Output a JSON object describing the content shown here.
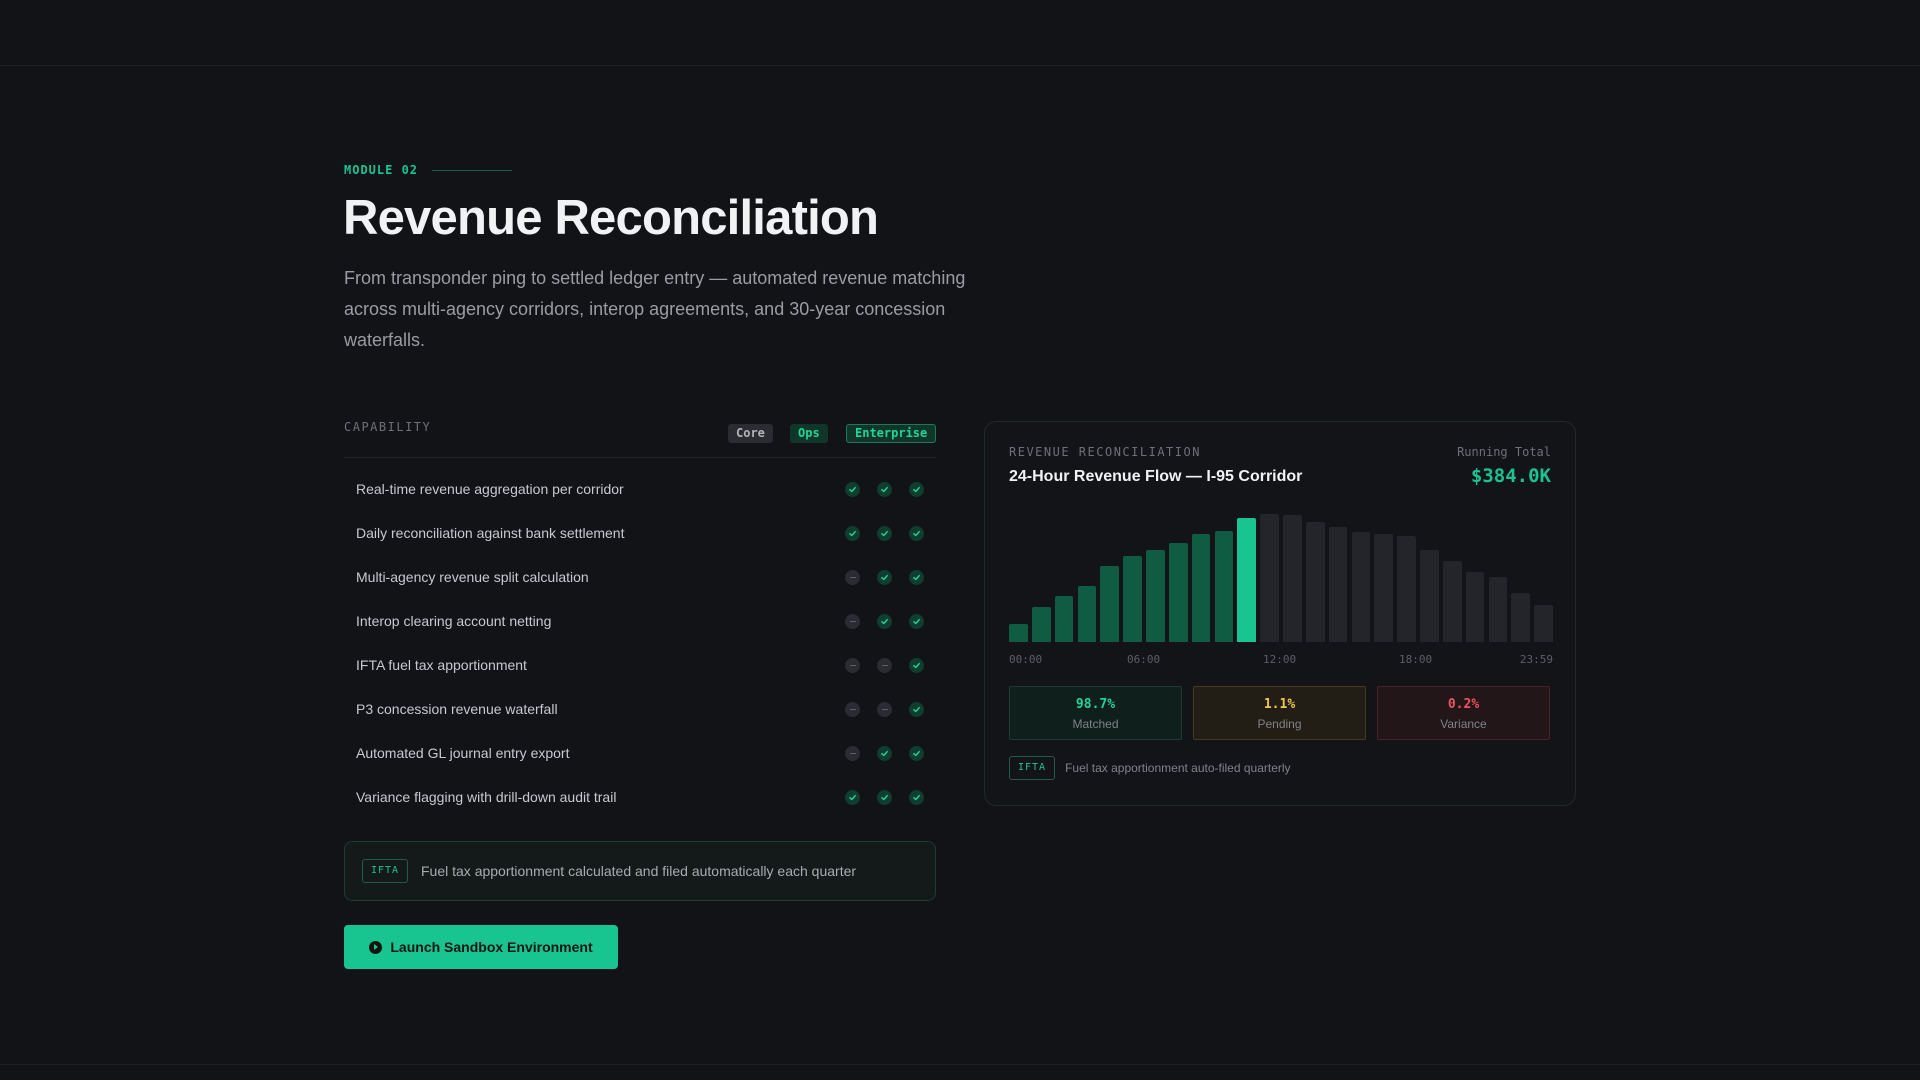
{
  "module": {
    "tag": "MODULE 02"
  },
  "title": "Revenue Reconciliation",
  "description": "From transponder ping to settled ledger entry — automated revenue matching across multi-agency corridors, interop agreements, and 30-year concession waterfalls.",
  "capability_table": {
    "header_label": "CAPABILITY",
    "tiers": [
      "Core",
      "Ops",
      "Enterprise"
    ],
    "rows": [
      {
        "label": "Real-time revenue aggregation per corridor",
        "included": [
          true,
          true,
          true
        ]
      },
      {
        "label": "Daily reconciliation against bank settlement",
        "included": [
          true,
          true,
          true
        ]
      },
      {
        "label": "Multi-agency revenue split calculation",
        "included": [
          false,
          true,
          true
        ]
      },
      {
        "label": "Interop clearing account netting",
        "included": [
          false,
          true,
          true
        ]
      },
      {
        "label": "IFTA fuel tax apportionment",
        "included": [
          false,
          false,
          true
        ]
      },
      {
        "label": "P3 concession revenue waterfall",
        "included": [
          false,
          false,
          true
        ]
      },
      {
        "label": "Automated GL journal entry export",
        "included": [
          false,
          true,
          true
        ]
      },
      {
        "label": "Variance flagging with drill-down audit trail",
        "included": [
          true,
          true,
          true
        ]
      }
    ]
  },
  "note": {
    "badge": "IFTA",
    "text": "Fuel tax apportionment calculated and filed automatically each quarter"
  },
  "cta": {
    "label": "Launch Sandbox Environment"
  },
  "card": {
    "eyebrow": "REVENUE RECONCILIATION",
    "title": "24-Hour Revenue Flow — I-95 Corridor",
    "running_total_label": "Running Total",
    "running_total_value": "$384.0K",
    "stats": [
      {
        "value": "98.7%",
        "label": "Matched"
      },
      {
        "value": "1.1%",
        "label": "Pending"
      },
      {
        "value": "0.2%",
        "label": "Variance"
      }
    ],
    "footer_badge": "IFTA",
    "footer_text": "Fuel tax apportionment auto-filed quarterly"
  },
  "chart_data": {
    "type": "bar",
    "x_tick_labels": [
      "00:00",
      "06:00",
      "12:00",
      "18:00",
      "23:59"
    ],
    "hours": [
      0,
      1,
      2,
      3,
      4,
      5,
      6,
      7,
      8,
      9,
      10,
      11,
      12,
      13,
      14,
      15,
      16,
      17,
      18,
      19,
      20,
      21,
      22,
      23
    ],
    "values": [
      14,
      27,
      36,
      44,
      59,
      67,
      72,
      77,
      84,
      87,
      97,
      100,
      99,
      94,
      90,
      86,
      84,
      83,
      72,
      63,
      55,
      51,
      38,
      29
    ],
    "highlight_index": 10,
    "ylim": [
      0,
      100
    ],
    "colors": {
      "past": "#0f5c43",
      "current": "#18c48f",
      "future": "#23252b"
    }
  }
}
